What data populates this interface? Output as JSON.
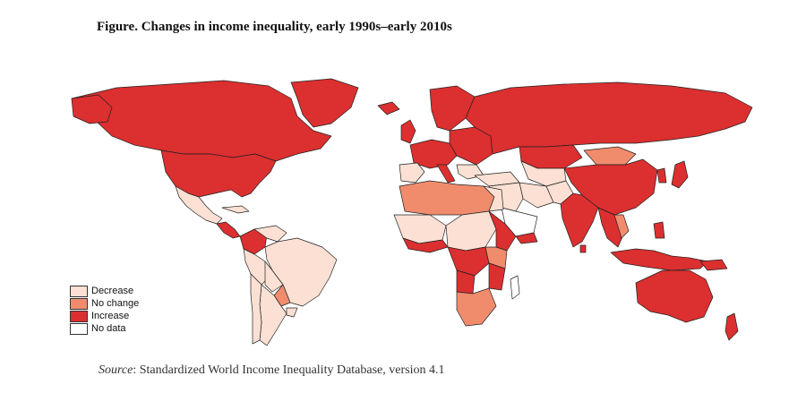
{
  "title": "Figure. Changes in income inequality, early 1990s–early 2010s",
  "source": {
    "label": "Source",
    "text": ": Standardized World Income Inequality Database, version 4.1"
  },
  "legend": [
    {
      "label": "Decrease",
      "color": "#fbe0d3"
    },
    {
      "label": "No change",
      "color": "#f08c6c"
    },
    {
      "label": "Increase",
      "color": "#dc2f2f"
    },
    {
      "label": "No data",
      "color": "#ffffff"
    }
  ],
  "colors": {
    "decrease": "#fbe0d3",
    "no_change": "#f08c6c",
    "increase": "#dc2f2f",
    "no_data": "#ffffff",
    "border": "#222222"
  }
}
